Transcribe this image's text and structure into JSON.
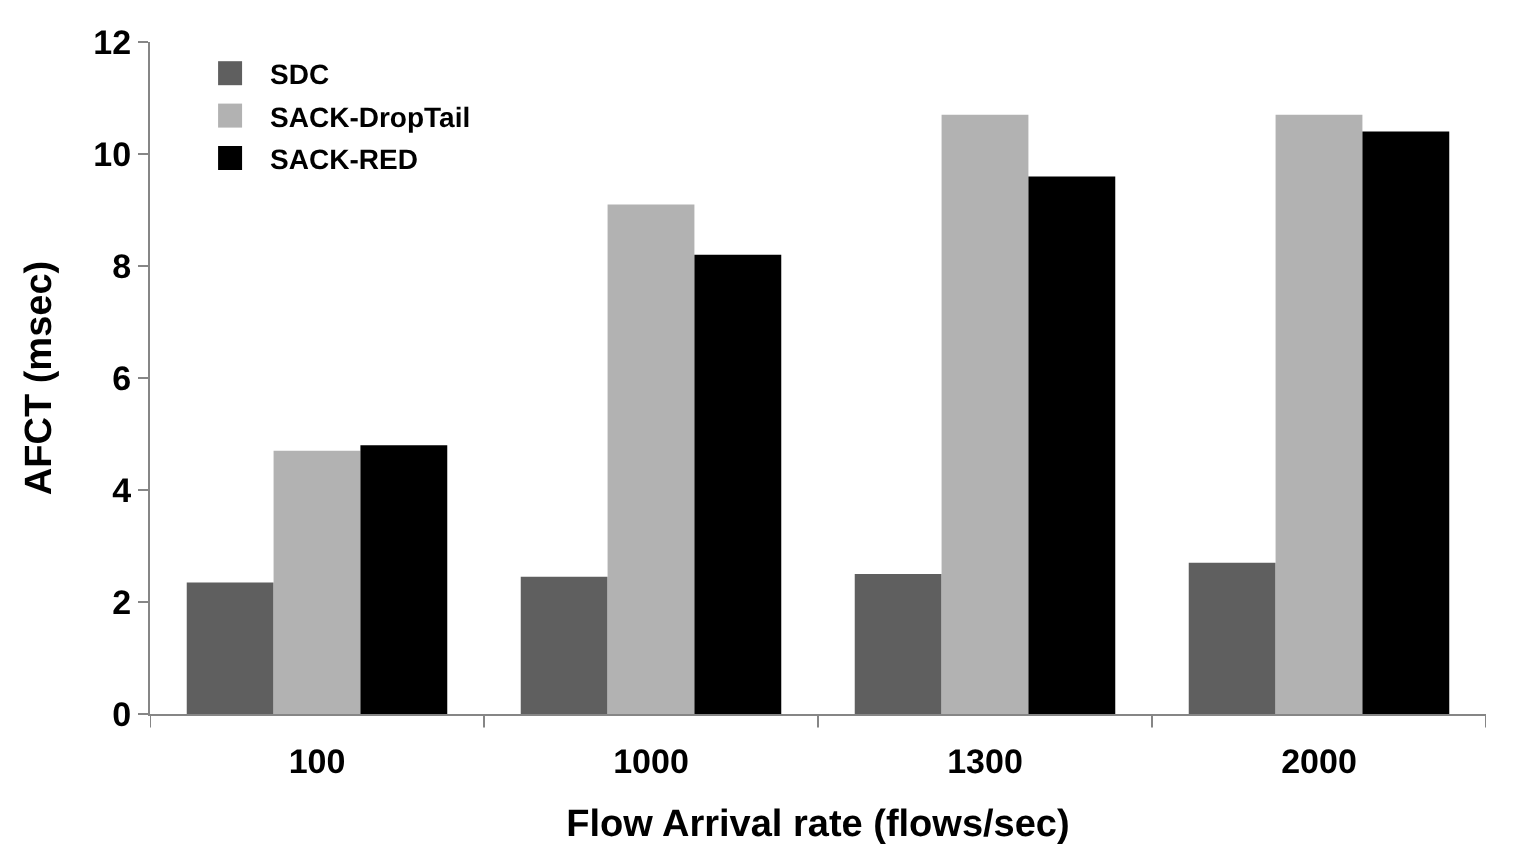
{
  "chart_data": {
    "type": "bar",
    "xlabel": "Flow Arrival rate (flows/sec)",
    "ylabel": "AFCT (msec)",
    "categories": [
      "100",
      "1000",
      "1300",
      "2000"
    ],
    "series": [
      {
        "name": "SDC",
        "color": "#5f5f5f",
        "values": [
          2.35,
          2.45,
          2.5,
          2.7
        ]
      },
      {
        "name": "SACK-DropTail",
        "color": "#b2b2b2",
        "values": [
          4.7,
          9.1,
          10.7,
          10.7
        ]
      },
      {
        "name": "SACK-RED",
        "color": "#000000",
        "values": [
          4.8,
          8.2,
          9.6,
          10.4
        ]
      }
    ],
    "ylim": [
      0,
      12
    ],
    "yticks": [
      0,
      2,
      4,
      6,
      8,
      10,
      12
    ],
    "legend": "top left"
  }
}
